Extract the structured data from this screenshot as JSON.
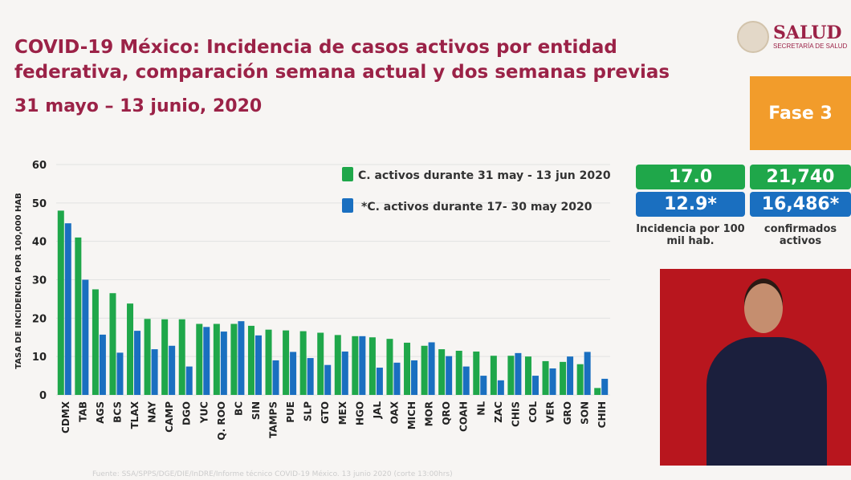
{
  "header": {
    "title": "COVID-19 México: Incidencia de casos activos por entidad federativa, comparación semana actual y dos semanas previas",
    "date_range": "31 mayo – 13 junio, 2020",
    "logo_text": "SALUD",
    "logo_subtext": "SECRETARÍA DE SALUD",
    "phase": "Fase 3"
  },
  "stats": {
    "incidence_current": "17.0",
    "incidence_previous": "12.9*",
    "incidence_label": "Incidencia por 100 mil hab.",
    "active_current": "21,740",
    "active_previous": "16,486*",
    "active_label": "confirmados activos"
  },
  "colors": {
    "current": "#1fa74a",
    "previous": "#1a6fc0",
    "title": "#9b2247",
    "phase": "#f29c2b"
  },
  "footer": "Fuente: SSA/SPPS/DGE/DIE/InDRE/Informe técnico COVID-19 México. 13 junio 2020 (corte 13:00hrs)",
  "chart_data": {
    "type": "bar",
    "ylabel": "TASA DE INCIDENCIA  POR 100,000 HAB",
    "ylim": [
      0,
      60
    ],
    "yticks": [
      0,
      10,
      20,
      30,
      40,
      50,
      60
    ],
    "grid": true,
    "legend_position": "top-right",
    "categories": [
      "CDMX",
      "TAB",
      "AGS",
      "BCS",
      "TLAX",
      "NAY",
      "CAMP",
      "DGO",
      "YUC",
      "Q. ROO",
      "BC",
      "SIN",
      "TAMPS",
      "PUE",
      "SLP",
      "GTO",
      "MEX",
      "HGO",
      "JAL",
      "OAX",
      "MICH",
      "MOR",
      "QRO",
      "COAH",
      "NL",
      "ZAC",
      "CHIS",
      "COL",
      "VER",
      "GRO",
      "SON",
      "CHIH"
    ],
    "series": [
      {
        "name": "C. activos durante 31 may - 13 jun 2020",
        "color": "#1fa74a",
        "values": [
          48,
          41,
          27.5,
          26.5,
          23.8,
          19.8,
          19.7,
          19.7,
          18.5,
          18.5,
          18.5,
          18,
          17,
          16.8,
          16.6,
          16.2,
          15.6,
          15.3,
          15,
          14.6,
          13.6,
          12.8,
          11.9,
          11.5,
          11.3,
          10.2,
          10.2,
          10,
          8.8,
          8.6,
          8,
          1.8
        ]
      },
      {
        "name": "*C. activos durante  17- 30 may 2020",
        "color": "#1a6fc0",
        "values": [
          44.7,
          30,
          15.7,
          11,
          16.7,
          11.9,
          12.8,
          7.4,
          17.7,
          16.5,
          19.2,
          15.5,
          9,
          11.2,
          9.6,
          7.8,
          11.3,
          15.3,
          7.1,
          8.4,
          9,
          13.7,
          10.1,
          7.4,
          5,
          3.8,
          10.9,
          5,
          6.9,
          10,
          11.2,
          4.2
        ]
      }
    ]
  }
}
